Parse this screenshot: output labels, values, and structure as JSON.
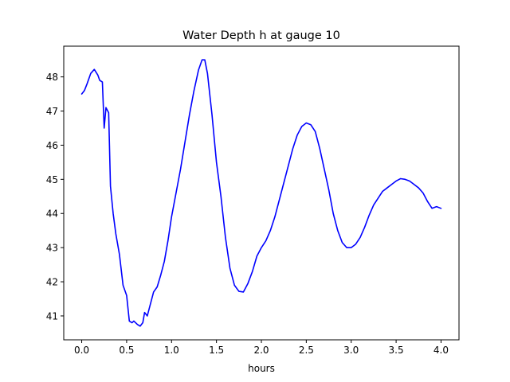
{
  "chart_data": {
    "type": "line",
    "title": "Water Depth h at gauge 10",
    "xlabel": "hours",
    "ylabel": "",
    "xlim": [
      -0.2,
      4.2
    ],
    "ylim": [
      40.3,
      48.9
    ],
    "grid": false,
    "legend": "none",
    "xticks": [
      0.0,
      0.5,
      1.0,
      1.5,
      2.0,
      2.5,
      3.0,
      3.5,
      4.0
    ],
    "xtick_labels": [
      "0.0",
      "0.5",
      "1.0",
      "1.5",
      "2.0",
      "2.5",
      "3.0",
      "3.5",
      "4.0"
    ],
    "yticks": [
      41,
      42,
      43,
      44,
      45,
      46,
      47,
      48
    ],
    "ytick_labels": [
      "41",
      "42",
      "43",
      "44",
      "45",
      "46",
      "47",
      "48"
    ],
    "series": [
      {
        "color": "#0000ff",
        "x": [
          0.0,
          0.03,
          0.06,
          0.1,
          0.14,
          0.18,
          0.2,
          0.23,
          0.25,
          0.27,
          0.3,
          0.32,
          0.35,
          0.38,
          0.42,
          0.46,
          0.5,
          0.53,
          0.56,
          0.58,
          0.6,
          0.62,
          0.65,
          0.68,
          0.7,
          0.73,
          0.76,
          0.8,
          0.84,
          0.88,
          0.92,
          0.96,
          1.0,
          1.05,
          1.1,
          1.15,
          1.2,
          1.25,
          1.3,
          1.34,
          1.37,
          1.4,
          1.45,
          1.5,
          1.55,
          1.6,
          1.65,
          1.7,
          1.75,
          1.8,
          1.85,
          1.9,
          1.95,
          2.0,
          2.05,
          2.1,
          2.15,
          2.2,
          2.25,
          2.3,
          2.35,
          2.4,
          2.45,
          2.5,
          2.55,
          2.6,
          2.65,
          2.7,
          2.75,
          2.8,
          2.85,
          2.9,
          2.95,
          3.0,
          3.05,
          3.1,
          3.15,
          3.2,
          3.25,
          3.3,
          3.35,
          3.4,
          3.45,
          3.5,
          3.55,
          3.6,
          3.65,
          3.7,
          3.75,
          3.8,
          3.85,
          3.9,
          3.95,
          4.0
        ],
        "y": [
          47.5,
          47.6,
          47.8,
          48.1,
          48.22,
          48.05,
          47.9,
          47.85,
          46.5,
          47.1,
          46.95,
          44.8,
          44.0,
          43.4,
          42.8,
          41.9,
          41.6,
          40.85,
          40.8,
          40.85,
          40.8,
          40.75,
          40.7,
          40.8,
          41.1,
          41.0,
          41.3,
          41.7,
          41.85,
          42.2,
          42.6,
          43.2,
          43.9,
          44.6,
          45.3,
          46.1,
          46.9,
          47.6,
          48.2,
          48.5,
          48.5,
          48.1,
          46.9,
          45.5,
          44.5,
          43.3,
          42.4,
          41.9,
          41.72,
          41.7,
          41.95,
          42.3,
          42.75,
          43.0,
          43.2,
          43.5,
          43.9,
          44.4,
          44.9,
          45.4,
          45.9,
          46.3,
          46.55,
          46.65,
          46.6,
          46.4,
          45.9,
          45.3,
          44.7,
          44.0,
          43.5,
          43.15,
          43.0,
          43.0,
          43.1,
          43.3,
          43.6,
          43.95,
          44.25,
          44.45,
          44.65,
          44.75,
          44.85,
          44.95,
          45.02,
          45.0,
          44.95,
          44.85,
          44.75,
          44.6,
          44.35,
          44.15,
          44.2,
          44.15
        ]
      }
    ]
  }
}
